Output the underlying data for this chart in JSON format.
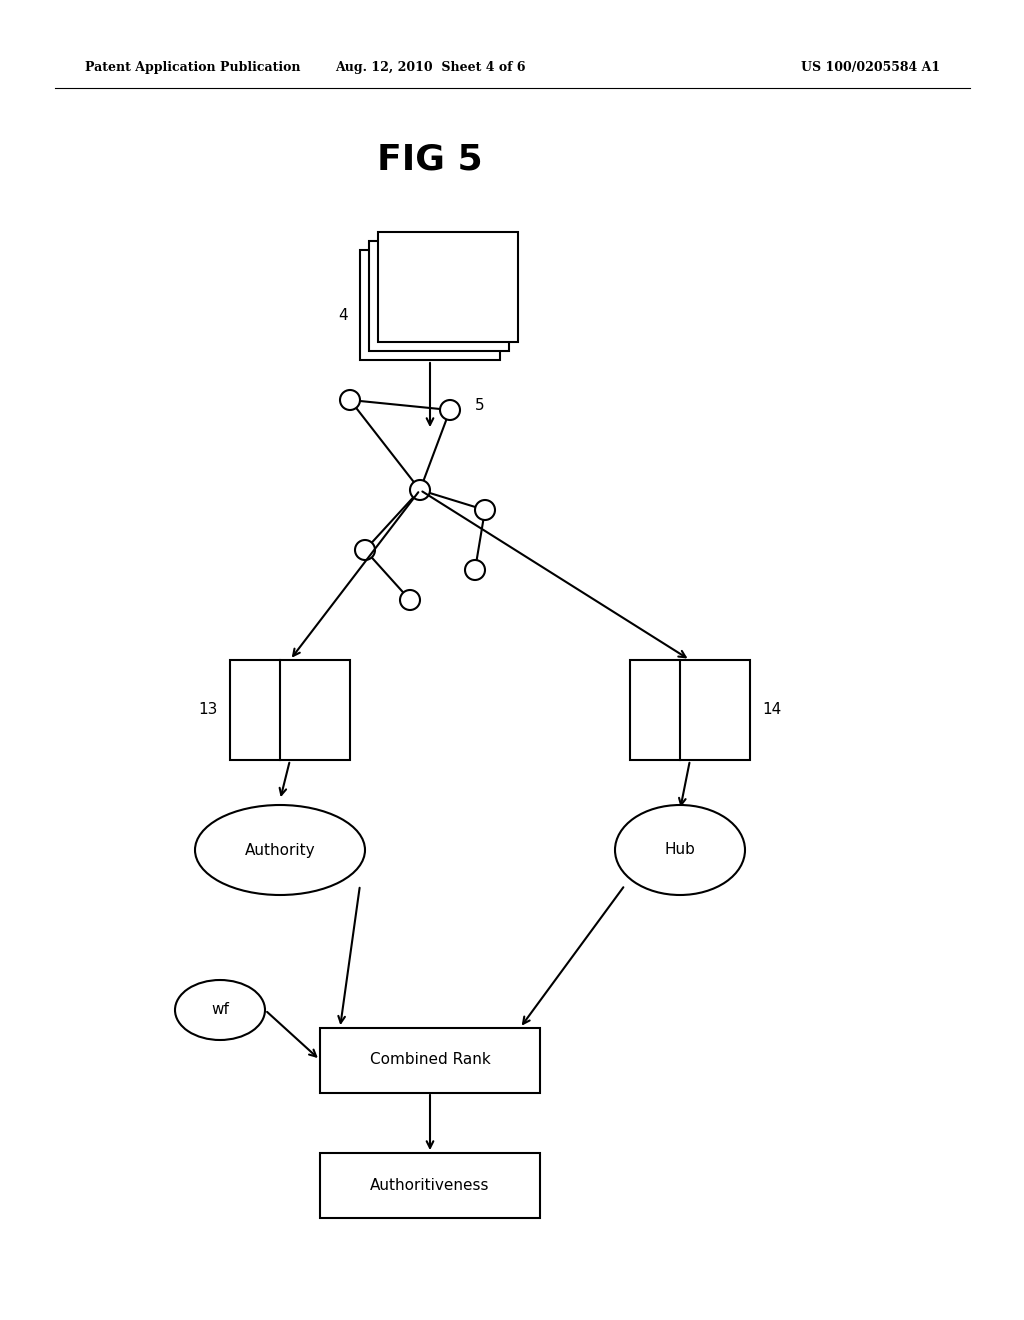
{
  "title": "FIG 5",
  "header_left": "Patent Application Publication",
  "header_mid": "Aug. 12, 2010  Sheet 4 of 6",
  "header_right": "US 100/0205584 A1",
  "bg_color": "#ffffff",
  "text_color": "#000000",
  "node4_label": "4",
  "node5_label": "5",
  "node13_label": "13",
  "node14_label": "14",
  "authority_label": "Authority",
  "hub_label": "Hub",
  "wf_label": "wf",
  "combined_rank_label": "Combined Rank",
  "authoritativeness_label": "Authoritiveness"
}
